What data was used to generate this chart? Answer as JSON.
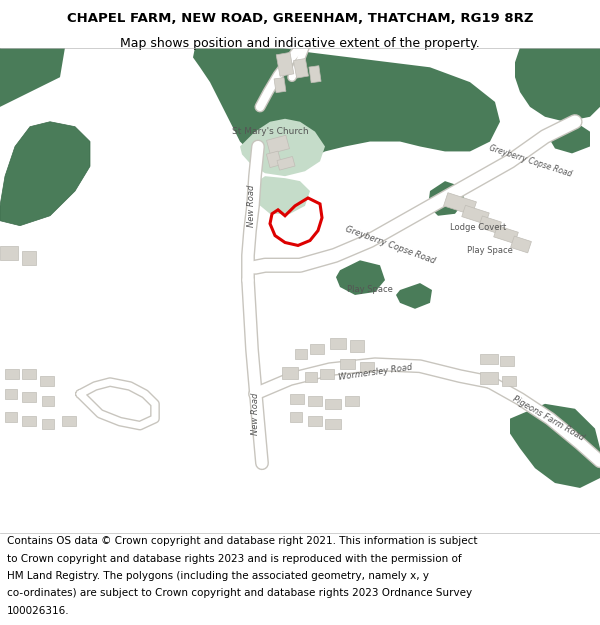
{
  "title_line1": "CHAPEL FARM, NEW ROAD, GREENHAM, THATCHAM, RG19 8RZ",
  "title_line2": "Map shows position and indicative extent of the property.",
  "footer_lines": [
    "Contains OS data © Crown copyright and database right 2021. This information is subject",
    "to Crown copyright and database rights 2023 and is reproduced with the permission of",
    "HM Land Registry. The polygons (including the associated geometry, namely x, y",
    "co-ordinates) are subject to Crown copyright and database rights 2023 Ordnance Survey",
    "100026316."
  ],
  "map_bg": "#f2f0ed",
  "green_dark": "#4a7c59",
  "green_light": "#c5dcc9",
  "road_color": "#ffffff",
  "road_edge": "#d0cdc8",
  "building_fc": "#d6d3cc",
  "building_ec": "#c0bdb6",
  "red_plot": "#dd0000",
  "title_fontsize": 9.5,
  "subtitle_fontsize": 9,
  "footer_fontsize": 7.5,
  "label_fontsize": 6,
  "label_color": "#555555"
}
